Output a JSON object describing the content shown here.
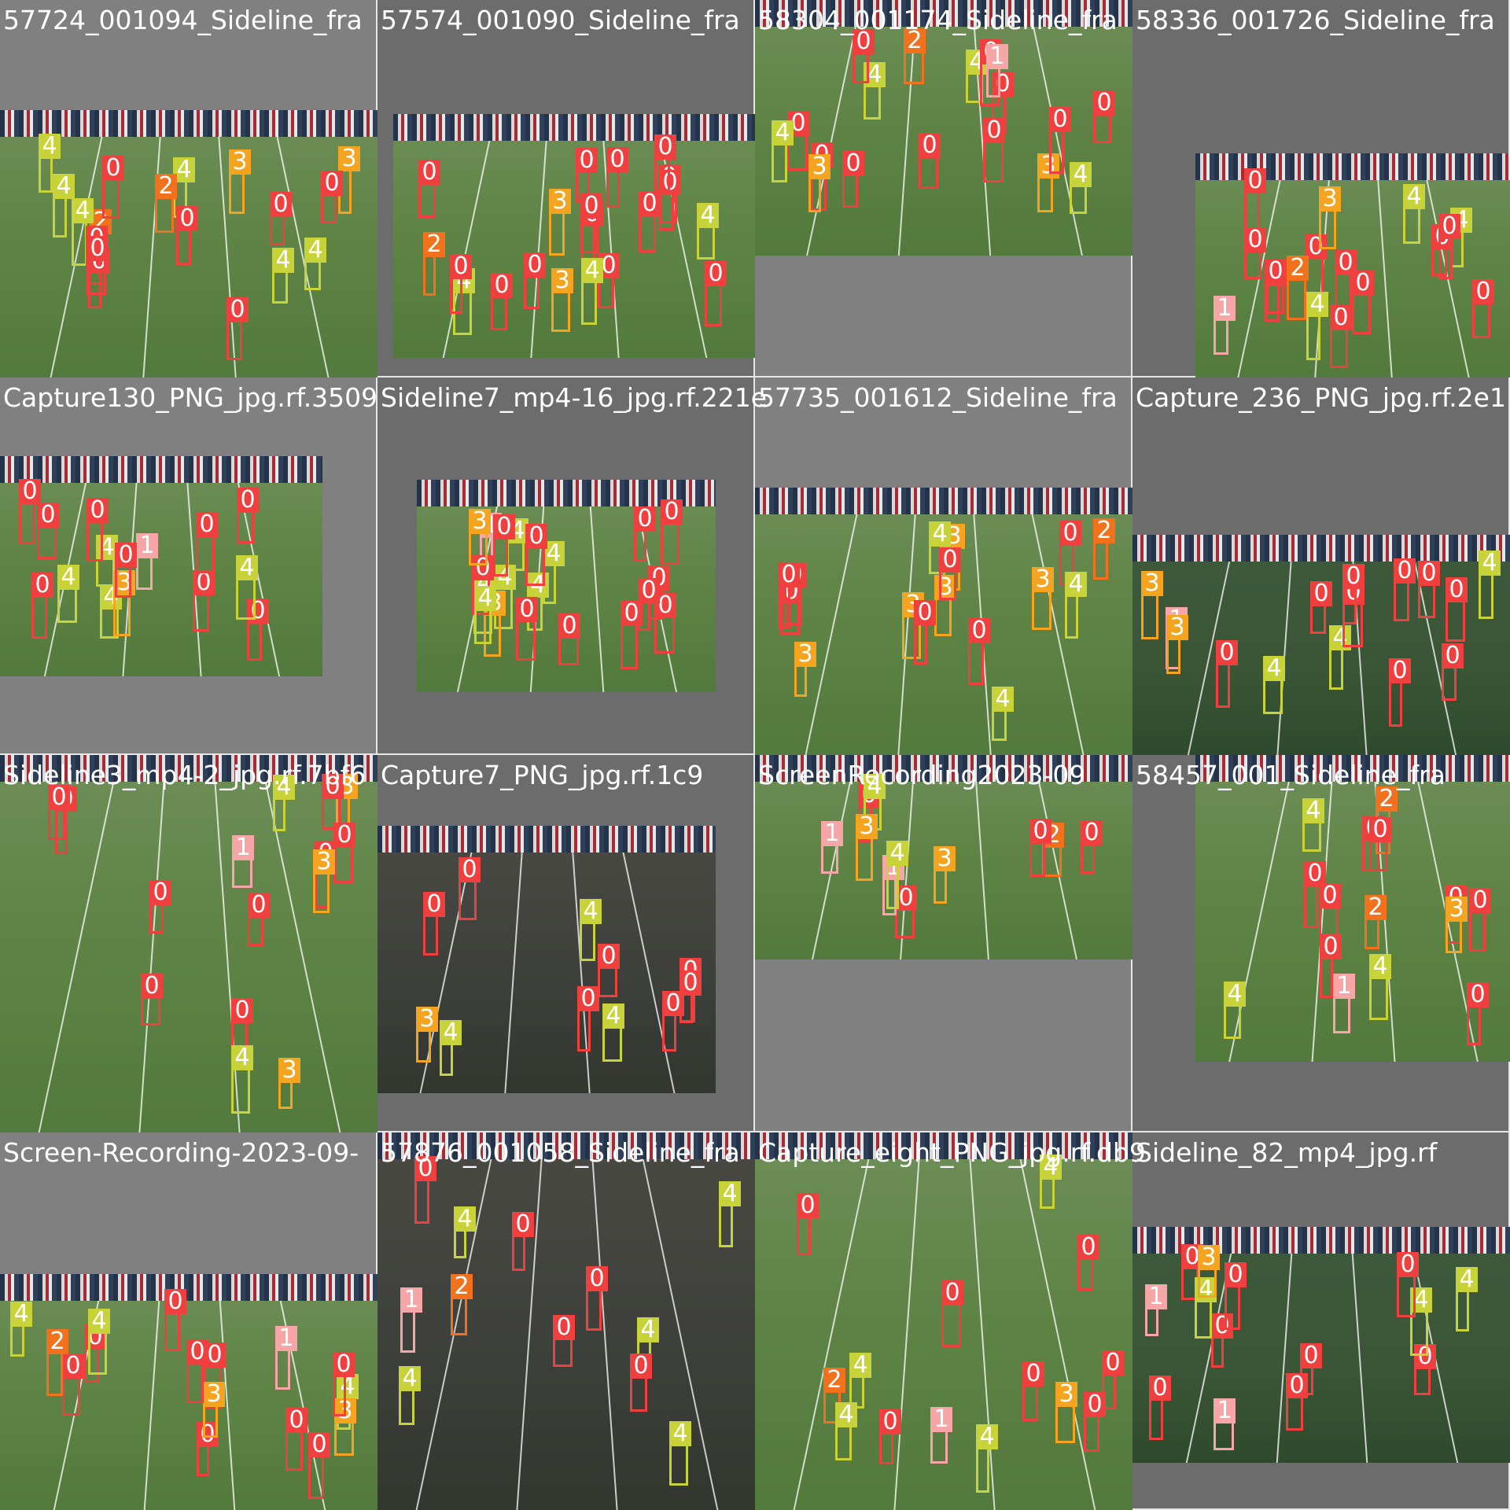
{
  "classes": {
    "0": {
      "label": "0",
      "color": "#ef3f3f"
    },
    "1": {
      "label": "1",
      "color": "#f6a6a6"
    },
    "2": {
      "label": "2",
      "color": "#f2711c"
    },
    "3": {
      "label": "3",
      "color": "#f4a41f"
    },
    "4": {
      "label": "4",
      "color": "#c8d33a"
    }
  },
  "tiles": [
    {
      "title": "57724_001094_Sideline_fra",
      "field": "day",
      "detections": [
        "2",
        "4",
        "4",
        "0",
        "4",
        "3",
        "4",
        "0",
        "0",
        "0",
        "0",
        "0",
        "3",
        "4",
        "0",
        "0",
        "2",
        "4"
      ]
    },
    {
      "title": "57574_001090_Sideline_fra",
      "field": "day",
      "detections": [
        "3",
        "0",
        "0",
        "0",
        "2",
        "0",
        "0",
        "3",
        "0",
        "4",
        "0",
        "0",
        "0",
        "4",
        "0",
        "0",
        "0",
        "4",
        "0",
        "0"
      ]
    },
    {
      "title": "58304_001174_Sideline_fra",
      "field": "day",
      "detections": [
        "0",
        "4",
        "3",
        "0",
        "0",
        "0",
        "2",
        "0",
        "1",
        "0",
        "4",
        "4",
        "0",
        "0",
        "4",
        "0",
        "3",
        "0"
      ]
    },
    {
      "title": "58336_001726_Sideline_fra",
      "field": "day",
      "detections": [
        "4",
        "0",
        "0",
        "0",
        "0",
        "4",
        "1",
        "0",
        "0",
        "0",
        "0",
        "3",
        "4",
        "2",
        "0",
        "0",
        "0"
      ]
    },
    {
      "title": "Capture130_PNG_jpg.rf.3509",
      "field": "day",
      "detections": [
        "0",
        "4",
        "0",
        "1",
        "0",
        "4",
        "0",
        "0",
        "0",
        "3",
        "0",
        "4",
        "0",
        "0",
        "4"
      ]
    },
    {
      "title": "Sideline7_mp4-16_jpg.rf.221e",
      "field": "day",
      "detections": [
        "4",
        "4",
        "0",
        "0",
        "4",
        "0",
        "4",
        "3",
        "0",
        "0",
        "0",
        "1",
        "0",
        "4",
        "0",
        "0",
        "3",
        "0",
        "0",
        "4"
      ]
    },
    {
      "title": "57735_001612_Sideline_fra",
      "field": "day",
      "detections": [
        "3",
        "0",
        "0",
        "0",
        "2",
        "4",
        "4",
        "3",
        "3",
        "4",
        "0",
        "0",
        "3",
        "0",
        "0",
        "3"
      ]
    },
    {
      "title": "Capture_236_PNG_jpg.rf.2e1",
      "field": "night",
      "detections": [
        "0",
        "0",
        "0",
        "4",
        "4",
        "1",
        "0",
        "0",
        "0",
        "0",
        "0",
        "3",
        "4",
        "0",
        "3"
      ]
    },
    {
      "title": "Sideline3_mp4-2_jpg.rf.7bf6",
      "field": "day",
      "detections": [
        "3",
        "4",
        "0",
        "1",
        "0",
        "0",
        "0",
        "3",
        "0",
        "0",
        "0",
        "0",
        "3",
        "4",
        "0"
      ]
    },
    {
      "title": "Capture7_PNG_jpg.rf.1c9",
      "field": "dark",
      "detections": [
        "4",
        "0",
        "0",
        "0",
        "0",
        "0",
        "4",
        "0",
        "4",
        "0",
        "3"
      ]
    },
    {
      "title": "ScreenRecording2023-09",
      "field": "day",
      "detections": [
        "0",
        "3",
        "0",
        "0",
        "4",
        "2",
        "1",
        "1",
        "4",
        "3",
        "0"
      ]
    },
    {
      "title": "58457_001_Sideline_fra",
      "field": "day",
      "detections": [
        "4",
        "0",
        "0",
        "2",
        "0",
        "0",
        "0",
        "4",
        "4",
        "0",
        "1",
        "0",
        "2",
        "3",
        "0"
      ]
    },
    {
      "title": "Screen-Recording-2023-09-",
      "field": "day",
      "detections": [
        "0",
        "0",
        "4",
        "0",
        "0",
        "4",
        "0",
        "0",
        "1",
        "3",
        "0",
        "3",
        "0",
        "0",
        "4",
        "2"
      ]
    },
    {
      "title": "57876_001058_Sideline_fra",
      "field": "dark",
      "detections": [
        "4",
        "0",
        "4",
        "2",
        "1",
        "0",
        "4",
        "4",
        "0",
        "0",
        "4",
        "0"
      ]
    },
    {
      "title": "Capture_eight_PNG_jpg.rf.db9",
      "field": "day",
      "detections": [
        "4",
        "0",
        "0",
        "1",
        "4",
        "2",
        "4",
        "0",
        "4",
        "3",
        "0",
        "0",
        "0",
        "0"
      ]
    },
    {
      "title": "Sideline_82_mp4_jpg.rf",
      "field": "night",
      "detections": [
        "0",
        "0",
        "1",
        "4",
        "0",
        "0",
        "0",
        "0",
        "4",
        "0",
        "1",
        "4",
        "0",
        "3"
      ]
    }
  ]
}
